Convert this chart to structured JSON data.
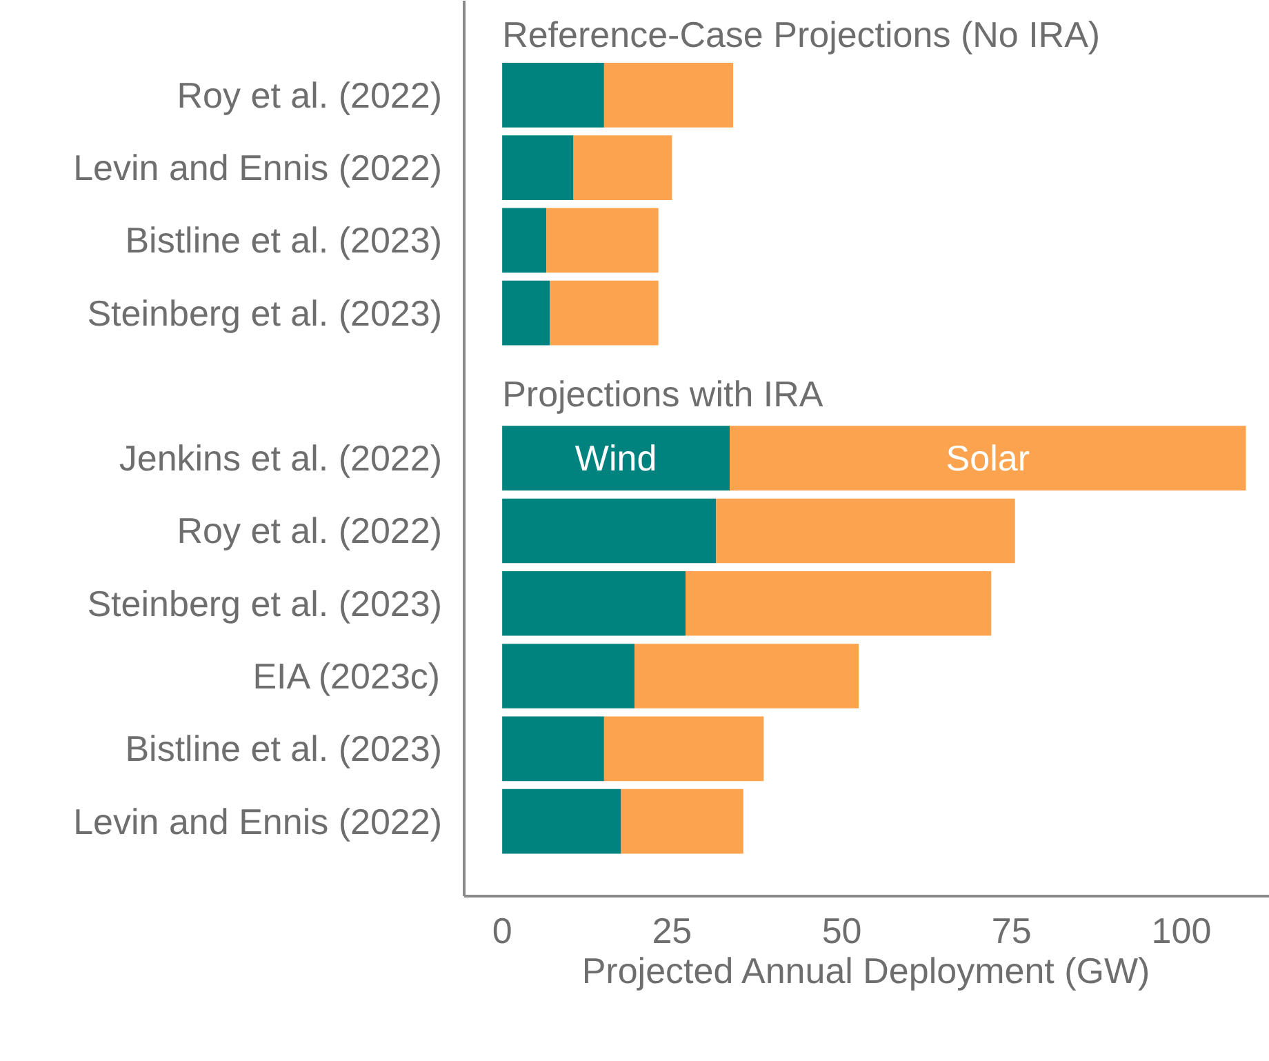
{
  "chart_data": {
    "type": "bar",
    "orientation": "horizontal",
    "stacked": true,
    "xlabel": "Projected Annual Deployment (GW)",
    "annotations": [
      "Reference-Case Projections (No IRA)",
      "Projections with IRA"
    ],
    "categories": [
      "Roy et al. (2022)",
      "Levin and Ennis (2022)",
      "Bistline et al. (2023)",
      "Steinberg et al. (2023)",
      null,
      "Jenkins et al. (2022)",
      "Roy et al. (2022)",
      "Steinberg et al. (2023)",
      "EIA (2023c)",
      "Bistline et al. (2023)",
      "Levin and Ennis (2022)"
    ],
    "series": [
      {
        "name": "Wind",
        "color": "#00837f",
        "values": [
          15,
          10.5,
          6.5,
          7,
          null,
          33.5,
          31.5,
          27,
          19.5,
          15,
          17.5
        ]
      },
      {
        "name": "Solar",
        "color": "#fba34f",
        "values": [
          19,
          14.5,
          16.5,
          16,
          null,
          76,
          44,
          45,
          33,
          23.5,
          18
        ]
      }
    ],
    "xlim": [
      -5.6,
      113
    ],
    "xticks": [
      0,
      25,
      50,
      75,
      100
    ]
  }
}
